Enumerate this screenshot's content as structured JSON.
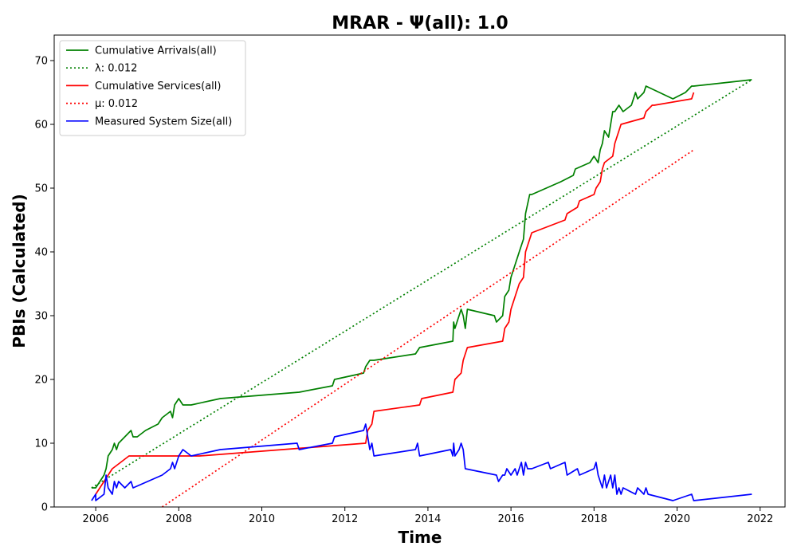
{
  "chart_data": {
    "type": "line",
    "title": "MRAR -  Ψ(all): 1.0",
    "xlabel": "Time",
    "ylabel": "PBIs (Calculated)",
    "xlim": [
      2005.0,
      2022.6
    ],
    "ylim": [
      0,
      74
    ],
    "xticks": [
      2006,
      2008,
      2010,
      2012,
      2014,
      2016,
      2018,
      2020,
      2022
    ],
    "yticks": [
      0,
      10,
      20,
      30,
      40,
      50,
      60,
      70
    ],
    "grid": false,
    "legend_position": "top-left",
    "series": [
      {
        "name": "Cumulative Arrivals(all)",
        "color": "#008000",
        "style": "solid",
        "x": [
          2005.9,
          2006.0,
          2006.1,
          2006.2,
          2006.25,
          2006.3,
          2006.4,
          2006.45,
          2006.5,
          2006.55,
          2006.85,
          2006.9,
          2007.0,
          2007.2,
          2007.5,
          2007.6,
          2007.8,
          2007.85,
          2007.9,
          2008.0,
          2008.1,
          2008.3,
          2009.0,
          2010.9,
          2011.7,
          2011.75,
          2012.45,
          2012.5,
          2012.6,
          2012.7,
          2013.7,
          2013.8,
          2014.6,
          2014.62,
          2014.65,
          2014.7,
          2014.8,
          2014.85,
          2014.9,
          2014.95,
          2015.6,
          2015.65,
          2015.8,
          2015.85,
          2015.95,
          2016.0,
          2016.05,
          2016.2,
          2016.3,
          2016.35,
          2016.45,
          2016.5,
          2017.2,
          2017.5,
          2017.55,
          2017.9,
          2018.0,
          2018.1,
          2018.15,
          2018.2,
          2018.25,
          2018.35,
          2018.4,
          2018.45,
          2018.5,
          2018.6,
          2018.7,
          2018.9,
          2019.0,
          2019.05,
          2019.2,
          2019.25,
          2019.9,
          2020.2,
          2020.35,
          2020.4,
          2021.8
        ],
        "y": [
          3,
          3,
          4,
          5,
          6,
          8,
          9,
          10,
          9,
          10,
          12,
          11,
          11,
          12,
          13,
          14,
          15,
          14,
          16,
          17,
          16,
          16,
          17,
          18,
          19,
          20,
          21,
          22,
          23,
          23,
          24,
          25,
          26,
          29,
          28,
          29,
          31,
          30,
          28,
          31,
          30,
          29,
          30,
          33,
          34,
          36,
          37,
          40,
          42,
          46,
          49,
          49,
          51,
          52,
          53,
          54,
          55,
          54,
          56,
          57,
          59,
          58,
          60,
          62,
          62,
          63,
          62,
          63,
          65,
          64,
          65,
          66,
          64,
          65,
          66,
          66,
          67
        ]
      },
      {
        "name": "λ: 0.012",
        "color": "#008000",
        "style": "dotted",
        "x": [
          2005.9,
          2021.8
        ],
        "y": [
          3,
          67
        ]
      },
      {
        "name": "Cumulative Services(all)",
        "color": "#ff0000",
        "style": "solid",
        "x": [
          2006.0,
          2006.1,
          2006.2,
          2006.3,
          2006.4,
          2006.6,
          2006.8,
          2006.85,
          2008.5,
          2012.5,
          2012.55,
          2012.65,
          2012.7,
          2013.8,
          2013.85,
          2014.6,
          2014.65,
          2014.8,
          2014.85,
          2014.95,
          2015.8,
          2015.85,
          2015.95,
          2016.0,
          2016.05,
          2016.2,
          2016.3,
          2016.35,
          2016.45,
          2016.5,
          2017.3,
          2017.35,
          2017.6,
          2017.65,
          2018.0,
          2018.05,
          2018.15,
          2018.2,
          2018.25,
          2018.45,
          2018.5,
          2018.6,
          2018.65,
          2019.2,
          2019.25,
          2019.4,
          2019.45,
          2020.35,
          2020.4
        ],
        "y": [
          2,
          3,
          4,
          5,
          6,
          7,
          8,
          8,
          8,
          10,
          12,
          13,
          15,
          16,
          17,
          18,
          20,
          21,
          23,
          25,
          26,
          28,
          29,
          31,
          32,
          35,
          36,
          40,
          42,
          43,
          45,
          46,
          47,
          48,
          49,
          50,
          51,
          53,
          54,
          55,
          57,
          59,
          60,
          61,
          62,
          63,
          63,
          64,
          65
        ]
      },
      {
        "name": "μ: 0.012",
        "color": "#ff0000",
        "style": "dotted",
        "x": [
          2007.6,
          2020.4
        ],
        "y": [
          0,
          56
        ]
      },
      {
        "name": "Measured System Size(all)",
        "color": "#0000ff",
        "style": "solid",
        "x": [
          2005.9,
          2006.0,
          2006.0,
          2006.2,
          2006.25,
          2006.3,
          2006.4,
          2006.45,
          2006.5,
          2006.55,
          2006.7,
          2006.85,
          2006.9,
          2007.6,
          2007.8,
          2007.85,
          2007.9,
          2008.0,
          2008.1,
          2008.3,
          2009.0,
          2010.85,
          2010.9,
          2011.7,
          2011.75,
          2012.45,
          2012.5,
          2012.55,
          2012.6,
          2012.65,
          2012.7,
          2013.7,
          2013.75,
          2013.8,
          2014.55,
          2014.6,
          2014.62,
          2014.65,
          2014.75,
          2014.8,
          2014.85,
          2014.9,
          2015.65,
          2015.7,
          2015.8,
          2015.85,
          2015.9,
          2016.0,
          2016.1,
          2016.15,
          2016.2,
          2016.25,
          2016.3,
          2016.35,
          2016.4,
          2016.5,
          2016.9,
          2016.95,
          2017.3,
          2017.35,
          2017.6,
          2017.65,
          2018.0,
          2018.05,
          2018.1,
          2018.15,
          2018.2,
          2018.25,
          2018.3,
          2018.35,
          2018.4,
          2018.45,
          2018.5,
          2018.55,
          2018.6,
          2018.65,
          2018.7,
          2019.0,
          2019.05,
          2019.2,
          2019.25,
          2019.3,
          2019.9,
          2020.35,
          2020.4,
          2021.8
        ],
        "y": [
          1,
          2,
          1,
          2,
          5,
          3,
          2,
          4,
          3,
          4,
          3,
          4,
          3,
          5,
          6,
          7,
          6,
          8,
          9,
          8,
          9,
          10,
          9,
          10,
          11,
          12,
          13,
          11,
          9,
          10,
          8,
          9,
          10,
          8,
          9,
          8,
          10,
          8,
          9,
          10,
          9,
          6,
          5,
          4,
          5,
          5,
          6,
          5,
          6,
          5,
          6,
          7,
          5,
          7,
          6,
          6,
          7,
          6,
          7,
          5,
          6,
          5,
          6,
          7,
          5,
          4,
          3,
          5,
          3,
          4,
          5,
          3,
          5,
          2,
          3,
          2,
          3,
          2,
          3,
          2,
          3,
          2,
          1,
          2,
          1,
          2
        ]
      }
    ]
  }
}
